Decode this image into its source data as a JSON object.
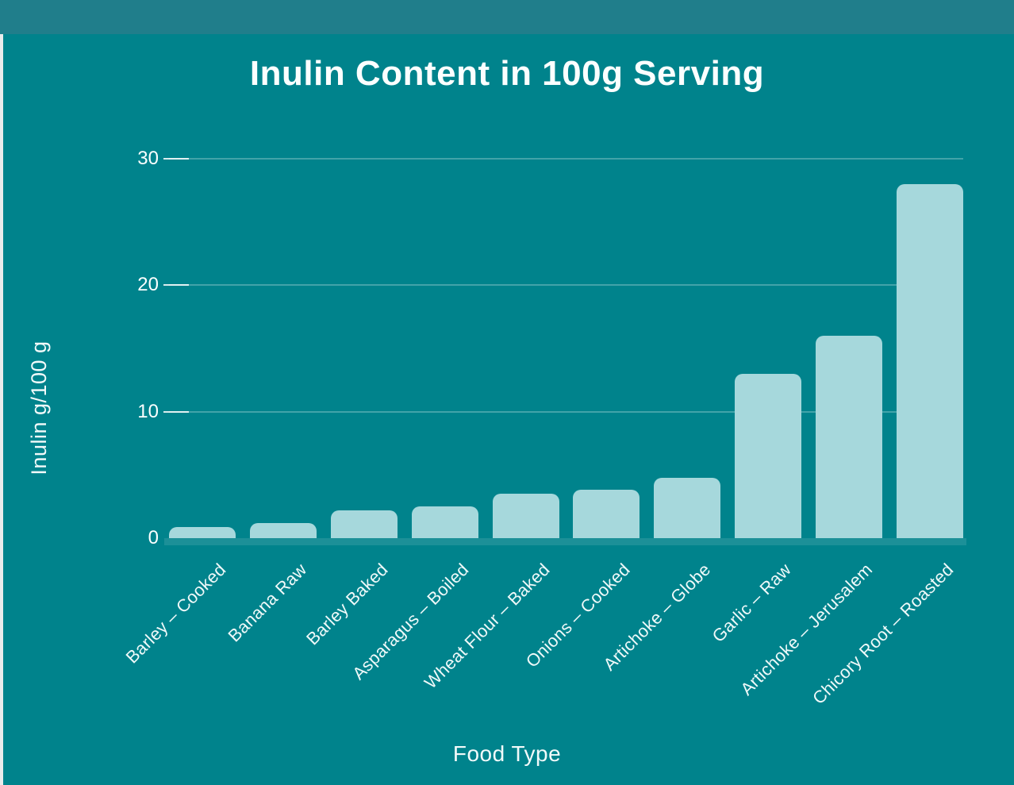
{
  "chart_data": {
    "type": "bar",
    "title": "Inulin Content in 100g Serving",
    "xlabel": "Food Type",
    "ylabel": "Inulin g/100 g",
    "categories": [
      "Barley – Cooked",
      "Banana Raw",
      "Barley Baked",
      "Asparagus – Boiled",
      "Wheat Flour – Baked",
      "Onions – Cooked",
      "Artichoke – Globe",
      "Garlic – Raw",
      "Artichoke – Jerusalem",
      "Chicory Root – Roasted"
    ],
    "values": [
      0.9,
      1.2,
      2.2,
      2.5,
      3.5,
      3.8,
      4.8,
      13,
      16,
      28
    ],
    "ylim": [
      0,
      30
    ],
    "yticks": [
      0,
      10,
      20,
      30
    ],
    "grid": "horizontal",
    "legend": "none",
    "colors": {
      "background": "#00838C",
      "top_band": "#207E8B",
      "bar": "#A6D8DC",
      "text": "#FBFFFF",
      "gridline": "rgba(255,255,255,0.26)",
      "axis_band": "rgba(255,255,255,0.11)",
      "left_strip": "#E9ECEC"
    }
  }
}
